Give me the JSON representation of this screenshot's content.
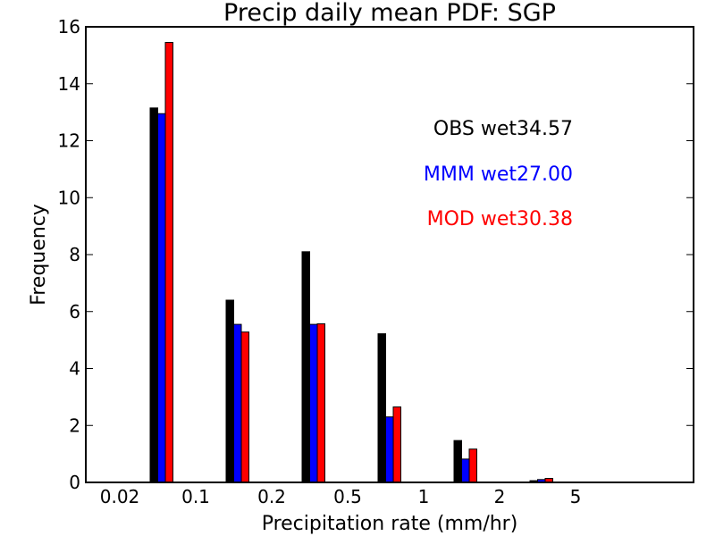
{
  "chart_data": {
    "type": "bar",
    "title": "Precip daily mean PDF: SGP",
    "xlabel": "Precipitation rate (mm/hr)",
    "ylabel": "Frequency",
    "ylim": [
      0,
      16
    ],
    "yticks": [
      0,
      2,
      4,
      6,
      8,
      10,
      12,
      14,
      16
    ],
    "xtick_labels": [
      "0.02",
      "0.1",
      "0.2",
      "0.5",
      "1",
      "2",
      "5"
    ],
    "grid": false,
    "series": [
      {
        "name": "OBS",
        "color": "#000000",
        "values": [
          13.15,
          6.4,
          8.1,
          5.22,
          1.47,
          0.06
        ]
      },
      {
        "name": "MMM",
        "color": "#0000ff",
        "values": [
          12.95,
          5.55,
          5.55,
          2.3,
          0.82,
          0.1
        ]
      },
      {
        "name": "MOD",
        "color": "#ff0000",
        "values": [
          15.45,
          5.28,
          5.57,
          2.65,
          1.17,
          0.14
        ]
      }
    ],
    "annotations": [
      {
        "text": "OBS wet34.57",
        "color": "#000000"
      },
      {
        "text": "MMM wet27.00",
        "color": "#0000ff"
      },
      {
        "text": "MOD wet30.38",
        "color": "#ff0000"
      }
    ]
  }
}
